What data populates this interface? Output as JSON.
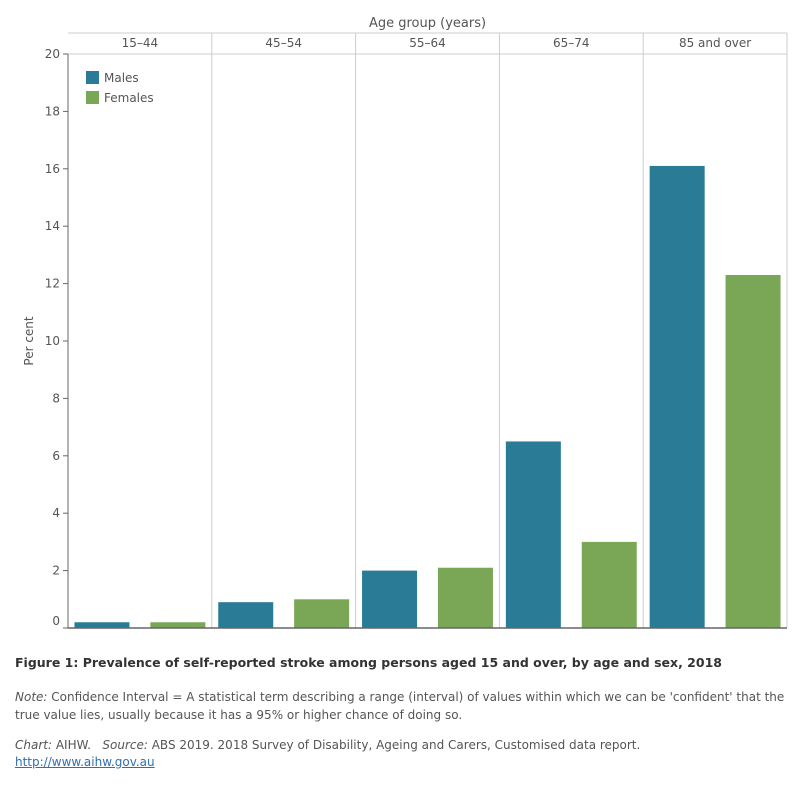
{
  "chart_data": {
    "type": "bar",
    "title": "Figure 1: Prevalence of self-reported stroke among persons aged 15 and over, by age and sex, 2018",
    "xlabel": "Age group (years)",
    "ylabel": "Per cent",
    "ylim": [
      0,
      20
    ],
    "yticks": [
      0,
      2,
      4,
      6,
      8,
      10,
      12,
      14,
      16,
      18,
      20
    ],
    "categories": [
      "15–44",
      "45–54",
      "55–64",
      "65–74",
      "85 and over"
    ],
    "series": [
      {
        "name": "Males",
        "color": "#2a7b96",
        "values": [
          0.2,
          0.9,
          2.0,
          6.5,
          16.1
        ]
      },
      {
        "name": "Females",
        "color": "#7aa755",
        "values": [
          0.2,
          1.0,
          2.1,
          3.0,
          12.3
        ]
      }
    ],
    "legend": "top-left",
    "grid": false
  },
  "footer": {
    "note_label": "Note:",
    "note_text": " Confidence Interval = A statistical term describing a range (interval) of values within which we can be 'confident' that the true value lies, usually because it has a 95% or higher chance of doing so.",
    "chart_label": "Chart:",
    "chart_text": " AIHW.   ",
    "source_label": "Source:",
    "source_text": " ABS 2019. 2018 Survey of Disability, Ageing and Carers, Customised data report.",
    "link": "http://www.aihw.gov.au"
  }
}
